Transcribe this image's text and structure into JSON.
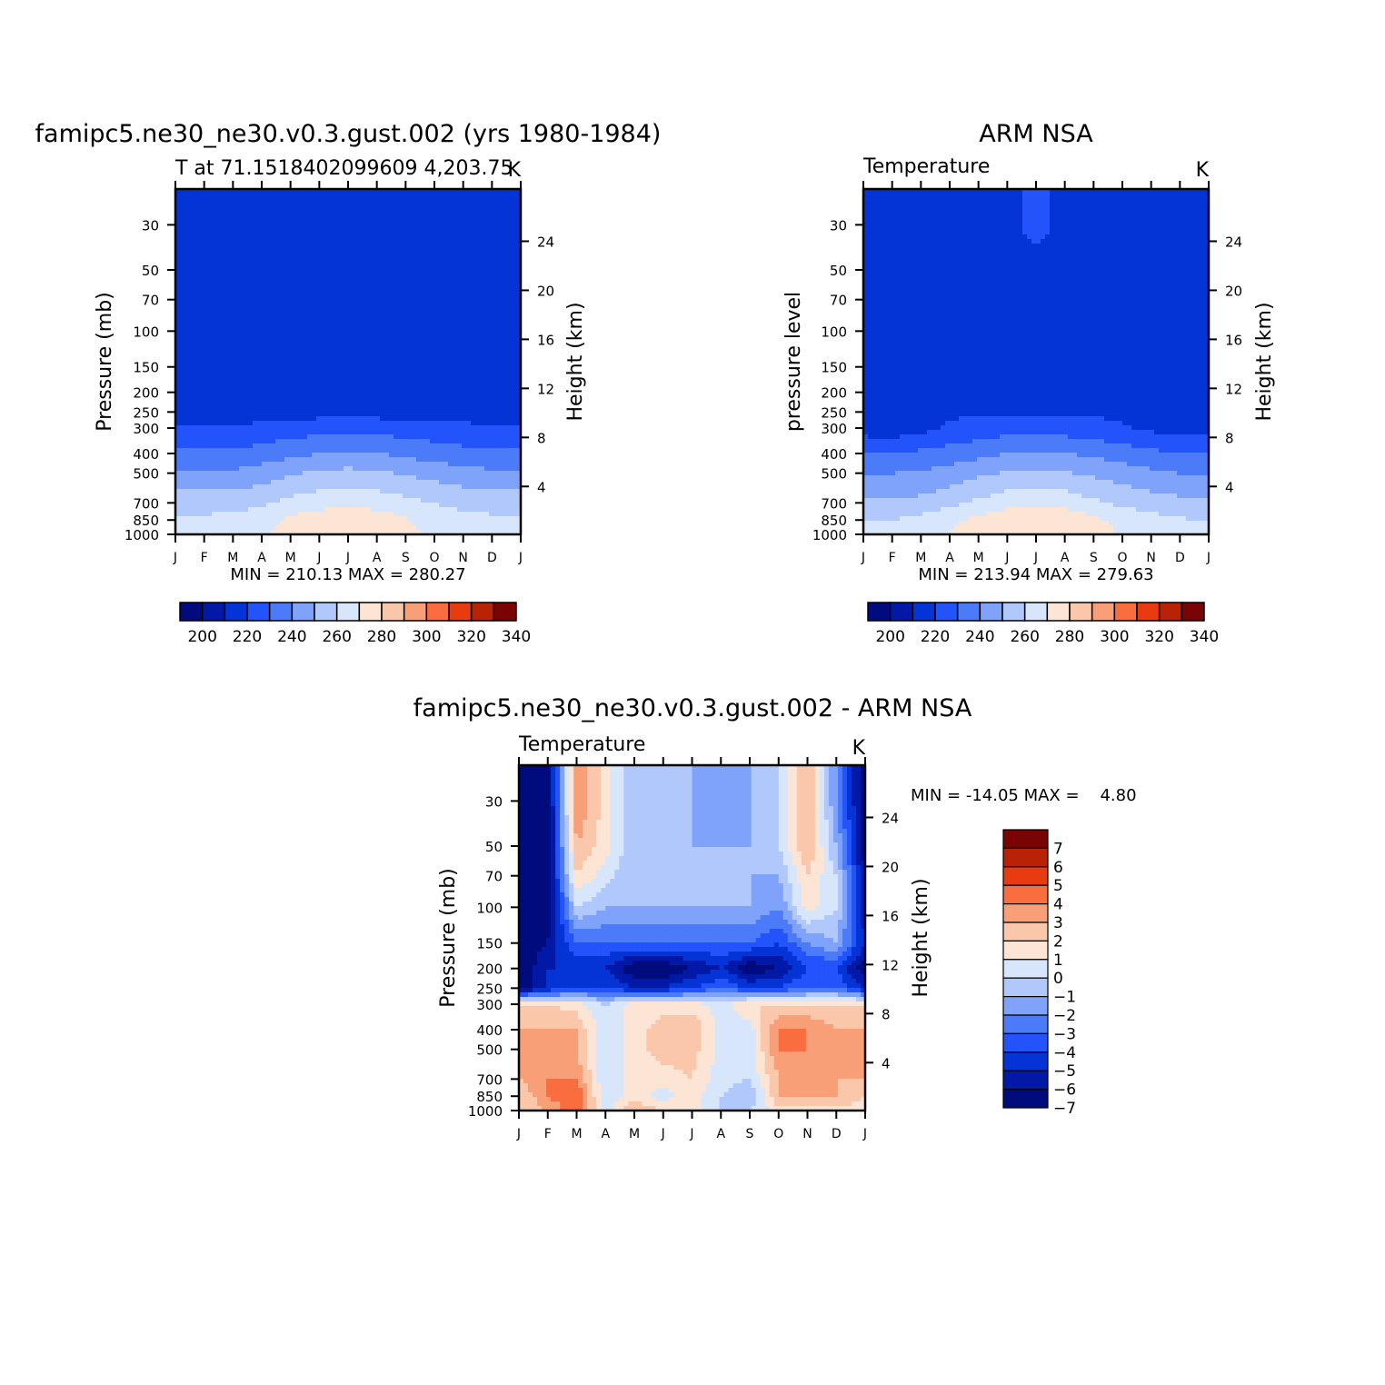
{
  "colors": {
    "temperature_scale": [
      "#000c7d",
      "#0219a8",
      "#0433d6",
      "#2353fa",
      "#4c7bfa",
      "#7fa3fa",
      "#b0c8fb",
      "#d7e6fb",
      "#fde5d5",
      "#fbc7aa",
      "#f99f77",
      "#f96d3e",
      "#e83b10",
      "#b82305",
      "#7a0403"
    ],
    "difference_scale": [
      "#000c7d",
      "#0219a8",
      "#0433d6",
      "#2353fa",
      "#4c7bfa",
      "#7fa3fa",
      "#b0c8fb",
      "#d7e6fb",
      "#fde5d5",
      "#fbc7aa",
      "#f99f77",
      "#f96d3e",
      "#e83b10",
      "#b82305",
      "#7a0403"
    ]
  },
  "chart_data": [
    {
      "type": "heatmap",
      "title": "famipc5.ne30_ne30.v0.3.gust.002 (yrs 1980-1984)",
      "subtitle_left": "T at 71.1518402099609 4,203.75",
      "subtitle_right": "K",
      "ylabel": "Pressure (mb)",
      "ylabel_right": "Height (km)",
      "x_ticks": [
        "J",
        "F",
        "M",
        "A",
        "M",
        "J",
        "J",
        "A",
        "S",
        "O",
        "N",
        "D",
        "J"
      ],
      "y_ticks": [
        30,
        50,
        70,
        100,
        150,
        200,
        250,
        300,
        400,
        500,
        700,
        850,
        1000
      ],
      "y_right_ticks": [
        24,
        20,
        16,
        12,
        8,
        4
      ],
      "stats": "MIN = 210.13 MAX = 280.27",
      "colorbar_ticks": [
        200,
        220,
        240,
        260,
        280,
        300,
        320,
        340
      ],
      "months": [
        "Jan",
        "Feb",
        "Mar",
        "Apr",
        "May",
        "Jun",
        "Jul",
        "Aug",
        "Sep",
        "Oct",
        "Nov",
        "Dec",
        "Jan"
      ],
      "levels": [
        30,
        50,
        70,
        100,
        150,
        200,
        250,
        300,
        400,
        500,
        700,
        850,
        1000
      ],
      "values_K": [
        [
          216,
          219,
          219,
          219,
          219,
          219,
          219,
          219,
          219,
          216,
          216,
          216,
          216
        ],
        [
          216,
          219,
          219,
          219,
          219,
          219,
          219,
          219,
          219,
          219,
          216,
          216,
          216
        ],
        [
          216,
          219,
          219,
          219,
          219,
          219,
          219,
          219,
          219,
          219,
          216,
          216,
          216
        ],
        [
          216,
          219,
          219,
          219,
          219,
          219,
          219,
          219,
          219,
          219,
          216,
          216,
          216
        ],
        [
          216,
          217,
          218,
          219,
          219,
          219,
          219,
          219,
          218,
          217,
          216,
          216,
          216
        ],
        [
          215,
          215,
          215,
          215,
          215,
          215,
          215,
          215,
          215,
          215,
          215,
          215,
          215
        ],
        [
          214,
          214,
          214,
          214,
          215,
          216,
          217,
          216,
          215,
          214,
          214,
          214,
          214
        ],
        [
          222,
          222,
          222,
          223,
          225,
          226,
          227,
          226,
          225,
          224,
          223,
          222,
          222
        ],
        [
          232,
          232,
          232,
          234,
          237,
          240,
          241,
          240,
          238,
          235,
          233,
          232,
          232
        ],
        [
          242,
          242,
          242,
          245,
          249,
          252,
          253,
          252,
          249,
          246,
          244,
          242,
          242
        ],
        [
          256,
          256,
          256,
          258,
          263,
          266,
          267,
          266,
          263,
          260,
          257,
          256,
          256
        ],
        [
          262,
          262,
          263,
          266,
          272,
          276,
          277,
          276,
          271,
          266,
          264,
          262,
          262
        ],
        [
          264,
          264,
          265,
          268,
          275,
          280,
          280,
          278,
          273,
          268,
          265,
          264,
          264
        ]
      ]
    },
    {
      "type": "heatmap",
      "title": "ARM NSA",
      "subtitle_left": "Temperature",
      "subtitle_right": "K",
      "ylabel": "pressure level",
      "ylabel_right": "Height (km)",
      "x_ticks": [
        "J",
        "F",
        "M",
        "A",
        "M",
        "J",
        "J",
        "A",
        "S",
        "O",
        "N",
        "D",
        "J"
      ],
      "y_ticks": [
        30,
        50,
        70,
        100,
        150,
        200,
        250,
        300,
        400,
        500,
        700,
        850,
        1000
      ],
      "y_right_ticks": [
        24,
        20,
        16,
        12,
        8,
        4
      ],
      "stats": "MIN = 213.94 MAX = 279.63",
      "colorbar_ticks": [
        200,
        220,
        240,
        260,
        280,
        300,
        320,
        340
      ],
      "months": [
        "Jan",
        "Feb",
        "Mar",
        "Apr",
        "May",
        "Jun",
        "Jul",
        "Aug",
        "Sep",
        "Oct",
        "Nov",
        "Dec",
        "Jan"
      ],
      "levels": [
        30,
        50,
        70,
        100,
        150,
        200,
        250,
        300,
        400,
        500,
        700,
        850,
        1000
      ],
      "values_K": [
        [
          219,
          219,
          219,
          219,
          219,
          219,
          221,
          219,
          219,
          216,
          216,
          216,
          216
        ],
        [
          219,
          219,
          219,
          219,
          219,
          219,
          219,
          219,
          219,
          219,
          216,
          216,
          217
        ],
        [
          219,
          219,
          219,
          219,
          219,
          219,
          219,
          219,
          219,
          219,
          216,
          216,
          216
        ],
        [
          219,
          219,
          219,
          219,
          219,
          219,
          219,
          219,
          219,
          219,
          216,
          216,
          216
        ],
        [
          219,
          219,
          219,
          219,
          219,
          219,
          219,
          219,
          219,
          219,
          217,
          216,
          216
        ],
        [
          217,
          216,
          217,
          219,
          219,
          219,
          219,
          219,
          219,
          217,
          216,
          216,
          216
        ],
        [
          215,
          215,
          216,
          218,
          219,
          219,
          219,
          219,
          219,
          218,
          216,
          216,
          216
        ],
        [
          215,
          214,
          217,
          222,
          224,
          226,
          226,
          225,
          223,
          221,
          218,
          216,
          215
        ],
        [
          230,
          230,
          232,
          234,
          237,
          240,
          241,
          240,
          238,
          235,
          232,
          231,
          230
        ],
        [
          240,
          240,
          241,
          244,
          248,
          251,
          252,
          251,
          248,
          245,
          242,
          240,
          240
        ],
        [
          252,
          252,
          253,
          257,
          262,
          266,
          267,
          266,
          262,
          258,
          255,
          253,
          252
        ],
        [
          260,
          260,
          263,
          268,
          273,
          277,
          278,
          277,
          272,
          267,
          264,
          261,
          260
        ],
        [
          262,
          262,
          266,
          270,
          276,
          279,
          280,
          278,
          274,
          269,
          265,
          262,
          262
        ]
      ]
    },
    {
      "type": "heatmap",
      "title": "famipc5.ne30_ne30.v0.3.gust.002 - ARM NSA",
      "subtitle_left": "Temperature",
      "subtitle_right": "K",
      "ylabel": "Pressure (mb)",
      "ylabel_right": "Height (km)",
      "x_ticks": [
        "J",
        "F",
        "M",
        "A",
        "M",
        "J",
        "J",
        "A",
        "S",
        "O",
        "N",
        "D",
        "J"
      ],
      "y_ticks": [
        30,
        50,
        70,
        100,
        150,
        200,
        250,
        300,
        400,
        500,
        700,
        850,
        1000
      ],
      "y_right_ticks": [
        24,
        20,
        16,
        12,
        8,
        4
      ],
      "stats": "MIN = -14.05 MAX =    4.80",
      "colorbar_ticks": [
        7,
        6,
        5,
        4,
        3,
        2,
        1,
        0,
        -1,
        -2,
        -3,
        -4,
        -5,
        -6,
        -7
      ],
      "months": [
        "Jan",
        "Feb",
        "Mar",
        "Apr",
        "May",
        "Jun",
        "Jul",
        "Aug",
        "Sep",
        "Oct",
        "Nov",
        "Dec",
        "Jan"
      ],
      "levels": [
        30,
        50,
        70,
        100,
        150,
        200,
        250,
        300,
        400,
        500,
        700,
        850,
        1000
      ],
      "values_K": [
        [
          -8,
          -8,
          3,
          0.5,
          -2,
          -2,
          -2,
          -3,
          -2,
          -1,
          2,
          -3,
          -8
        ],
        [
          -8,
          -8,
          2,
          0.5,
          -2,
          -2,
          -2,
          -2,
          -2,
          -1,
          2,
          -2,
          -8
        ],
        [
          -8,
          -8,
          1,
          -0.5,
          -2,
          -2,
          -2,
          -2,
          -2,
          -2,
          1,
          -1,
          -7
        ],
        [
          -8,
          -8,
          -1,
          -2,
          -2,
          -2,
          -2,
          -2,
          -2,
          -3,
          0.5,
          -1,
          -7
        ],
        [
          -8,
          -7,
          -4,
          -4,
          -4,
          -4,
          -4,
          -4,
          -4,
          -5,
          -3,
          -2,
          -6
        ],
        [
          -8,
          -6,
          -6,
          -6,
          -8,
          -8,
          -7,
          -6,
          -8,
          -7,
          -5,
          -5,
          -8
        ],
        [
          -8,
          -6,
          -5,
          -5,
          -6,
          -6,
          -5,
          -4,
          -5,
          -5,
          -4,
          -4,
          -6
        ],
        [
          1,
          1,
          0.5,
          -1,
          0.5,
          0.5,
          0.5,
          -0.5,
          1,
          1,
          1,
          1,
          1
        ],
        [
          2,
          2,
          2,
          -1,
          0.5,
          1.5,
          2,
          -0.5,
          -0.5,
          3,
          3,
          2,
          2
        ],
        [
          2,
          2,
          2,
          -1,
          0.5,
          1.5,
          1.5,
          -0.5,
          -0.5,
          3,
          3,
          2,
          2
        ],
        [
          2,
          3,
          3,
          -1,
          0.5,
          0.5,
          1,
          -0.5,
          -1,
          2,
          3,
          2,
          2
        ],
        [
          1,
          3,
          4,
          -1,
          0.5,
          -0.5,
          0.5,
          -1,
          -2,
          2,
          2,
          2,
          1
        ],
        [
          1,
          2,
          4,
          -0.5,
          2,
          1,
          0.5,
          -1,
          -1,
          0.5,
          0.5,
          0.5,
          0.5
        ]
      ]
    }
  ]
}
